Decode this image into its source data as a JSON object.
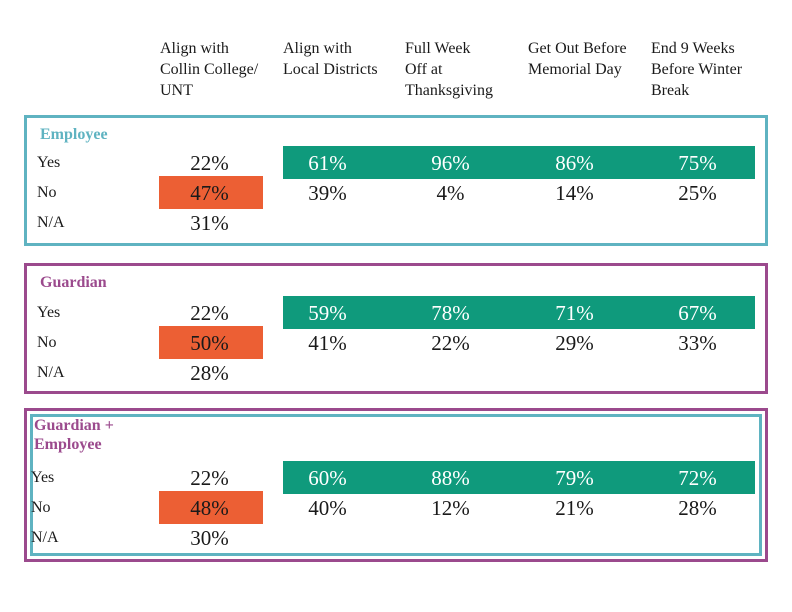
{
  "chart_data": {
    "type": "table",
    "columns": [
      "Align with Collin College/ UNT",
      "Align with Local Districts",
      "Full Week Off at Thanksgiving",
      "Get Out Before Memorial Day",
      "End 9 Weeks Before Winter Break"
    ],
    "row_labels": [
      "Yes",
      "No",
      "N/A"
    ],
    "groups": [
      {
        "name": "Employee",
        "yes": [
          "22%",
          "61%",
          "96%",
          "86%",
          "75%"
        ],
        "no": [
          "47%",
          "39%",
          "4%",
          "14%",
          "25%"
        ],
        "na": "31%"
      },
      {
        "name": "Guardian",
        "yes": [
          "22%",
          "59%",
          "78%",
          "71%",
          "67%"
        ],
        "no": [
          "50%",
          "41%",
          "22%",
          "29%",
          "33%"
        ],
        "na": "28%"
      },
      {
        "name": "Guardian + Employee",
        "yes": [
          "22%",
          "60%",
          "88%",
          "79%",
          "72%"
        ],
        "no": [
          "48%",
          "40%",
          "12%",
          "21%",
          "28%"
        ],
        "na": "30%"
      }
    ]
  },
  "headers": [
    [
      "Align with",
      "Collin College/",
      "UNT"
    ],
    [
      "Align with",
      "Local Districts"
    ],
    [
      "Full Week",
      "Off at",
      "Thanksgiving"
    ],
    [
      "Get Out Before",
      "Memorial Day"
    ],
    [
      "End 9 Weeks",
      "Before Winter",
      "Break"
    ]
  ],
  "group_titles": [
    [
      "Employee"
    ],
    [
      "Guardian"
    ],
    [
      "Guardian +",
      "Employee"
    ]
  ],
  "colors": {
    "employee": "#5fb3c1",
    "guardian": "#9b4a8d",
    "yes_highlight": "#0f9a7c",
    "no_highlight": "#ec5f34"
  }
}
